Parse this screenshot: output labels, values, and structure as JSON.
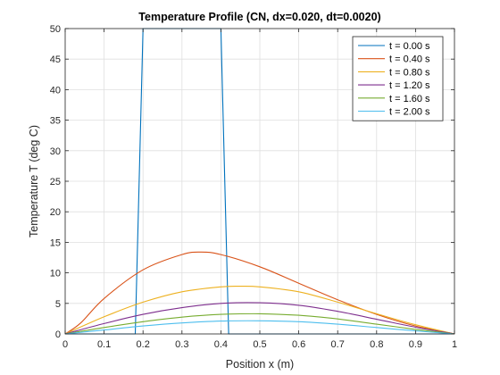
{
  "chart_data": {
    "type": "line",
    "title": "Temperature Profile (CN, dx=0.020, dt=0.0020)",
    "xlabel": "Position x (m)",
    "ylabel": "Temperature T (deg C)",
    "xlim": [
      0,
      1
    ],
    "ylim": [
      0,
      50
    ],
    "xticks": [
      "0",
      "0.1",
      "0.2",
      "0.3",
      "0.4",
      "0.5",
      "0.6",
      "0.7",
      "0.8",
      "0.9",
      "1"
    ],
    "yticks": [
      "0",
      "5",
      "10",
      "15",
      "20",
      "25",
      "30",
      "35",
      "40",
      "45",
      "50"
    ],
    "grid": true,
    "legend_position": "top-right",
    "series": [
      {
        "name": "t = 0.00 s",
        "color": "#0072BD",
        "x": [
          0,
          0.18,
          0.2,
          0.4,
          0.42,
          1
        ],
        "y": [
          0,
          0,
          50,
          50,
          0,
          0
        ]
      },
      {
        "name": "t = 0.40 s",
        "color": "#D95319",
        "x": [
          0,
          0.04,
          0.1,
          0.2,
          0.3,
          0.35,
          0.4,
          0.5,
          0.6,
          0.7,
          0.8,
          0.9,
          1
        ],
        "y": [
          0,
          1.8,
          5.8,
          10.5,
          13.0,
          13.4,
          13.0,
          11.0,
          8.3,
          5.6,
          3.2,
          1.3,
          0
        ]
      },
      {
        "name": "t = 0.80 s",
        "color": "#EDB120",
        "x": [
          0,
          0.1,
          0.2,
          0.3,
          0.4,
          0.45,
          0.5,
          0.6,
          0.7,
          0.8,
          0.9,
          1
        ],
        "y": [
          0,
          2.8,
          5.2,
          6.9,
          7.7,
          7.8,
          7.7,
          6.9,
          5.2,
          3.3,
          1.5,
          0
        ]
      },
      {
        "name": "t = 1.20 s",
        "color": "#7E2F8E",
        "x": [
          0,
          0.1,
          0.2,
          0.3,
          0.4,
          0.5,
          0.6,
          0.7,
          0.8,
          0.9,
          1
        ],
        "y": [
          0,
          1.7,
          3.2,
          4.3,
          5.0,
          5.1,
          4.7,
          3.7,
          2.4,
          1.1,
          0
        ]
      },
      {
        "name": "t = 1.60 s",
        "color": "#77AC30",
        "x": [
          0,
          0.1,
          0.2,
          0.3,
          0.4,
          0.5,
          0.6,
          0.7,
          0.8,
          0.9,
          1
        ],
        "y": [
          0,
          1.05,
          2.0,
          2.75,
          3.2,
          3.3,
          3.05,
          2.45,
          1.6,
          0.75,
          0
        ]
      },
      {
        "name": "t = 2.00 s",
        "color": "#4DBEEE",
        "x": [
          0,
          0.1,
          0.2,
          0.3,
          0.4,
          0.5,
          0.6,
          0.7,
          0.8,
          0.9,
          1
        ],
        "y": [
          0,
          0.65,
          1.3,
          1.8,
          2.1,
          2.15,
          2.0,
          1.6,
          1.05,
          0.5,
          0
        ]
      }
    ]
  }
}
